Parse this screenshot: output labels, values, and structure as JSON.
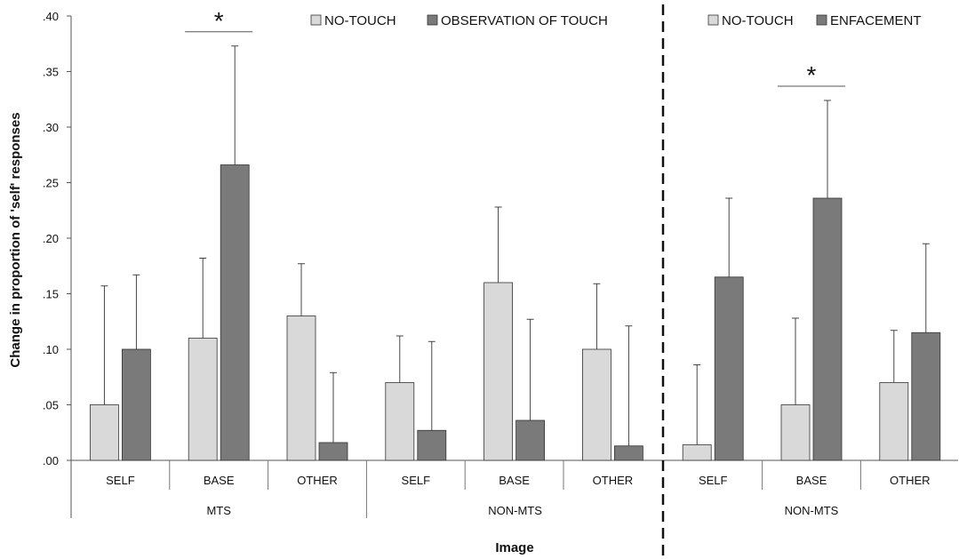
{
  "chart_data": {
    "type": "bar",
    "ylabel": "Change in proportion of 'self' responses",
    "xlabel": "Image",
    "ylim": [
      0,
      0.4
    ],
    "yticks": [
      ".00",
      ".05",
      ".10",
      ".15",
      ".20",
      ".25",
      ".30",
      ".35",
      ".40"
    ],
    "grid": false,
    "panels": [
      {
        "legend": [
          "NO-TOUCH",
          "OBSERVATION OF TOUCH"
        ],
        "legend_position": "top",
        "groups": [
          {
            "label": "MTS",
            "categories": [
              "SELF",
              "BASE",
              "OTHER"
            ],
            "series": [
              {
                "name": "NO-TOUCH",
                "values": [
                  0.05,
                  0.11,
                  0.13
                ],
                "errors": [
                  0.107,
                  0.072,
                  0.047
                ]
              },
              {
                "name": "OBSERVATION OF TOUCH",
                "values": [
                  0.1,
                  0.266,
                  0.016
                ],
                "errors": [
                  0.067,
                  0.107,
                  0.063
                ]
              }
            ],
            "significance": [
              {
                "category": "BASE",
                "label": "*"
              }
            ]
          },
          {
            "label": "NON-MTS",
            "categories": [
              "SELF",
              "BASE",
              "OTHER"
            ],
            "series": [
              {
                "name": "NO-TOUCH",
                "values": [
                  0.07,
                  0.16,
                  0.1
                ],
                "errors": [
                  0.042,
                  0.068,
                  0.059
                ]
              },
              {
                "name": "OBSERVATION OF TOUCH",
                "values": [
                  0.027,
                  0.036,
                  0.013
                ],
                "errors": [
                  0.08,
                  0.091,
                  0.108
                ]
              }
            ],
            "significance": []
          }
        ]
      },
      {
        "legend": [
          "NO-TOUCH",
          "ENFACEMENT"
        ],
        "legend_position": "top",
        "groups": [
          {
            "label": "NON-MTS",
            "categories": [
              "SELF",
              "BASE",
              "OTHER"
            ],
            "series": [
              {
                "name": "NO-TOUCH",
                "values": [
                  0.014,
                  0.05,
                  0.07
                ],
                "errors": [
                  0.072,
                  0.078,
                  0.047
                ]
              },
              {
                "name": "ENFACEMENT",
                "values": [
                  0.165,
                  0.236,
                  0.115
                ],
                "errors": [
                  0.071,
                  0.088,
                  0.08
                ]
              }
            ],
            "significance": [
              {
                "category": "BASE",
                "label": "*"
              }
            ]
          }
        ]
      }
    ],
    "colors": {
      "no_touch": "#d9d9d9",
      "touch": "#7a7a7a",
      "stroke": "#333333"
    }
  }
}
